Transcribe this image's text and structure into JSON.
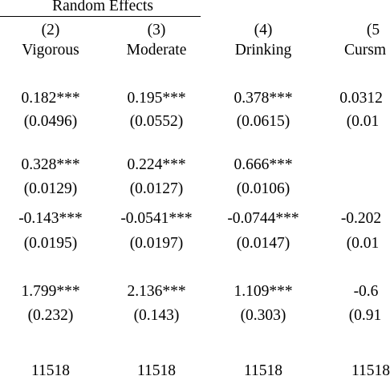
{
  "table": {
    "group_header": "Random Effects",
    "columns": [
      {
        "number": "(2)",
        "name": "Vigorous"
      },
      {
        "number": "(3)",
        "name": "Moderate"
      },
      {
        "number": "(4)",
        "name": "Drinking"
      },
      {
        "number": "(5",
        "name": "Cursm"
      }
    ],
    "rows": [
      {
        "estimates": [
          "0.182***",
          "0.195***",
          "0.378***",
          "0.0312"
        ],
        "std_errors": [
          "(0.0496)",
          "(0.0552)",
          "(0.0615)",
          "(0.01"
        ]
      },
      {
        "estimates": [
          "0.328***",
          "0.224***",
          "0.666***",
          ""
        ],
        "std_errors": [
          "(0.0129)",
          "(0.0127)",
          "(0.0106)",
          ""
        ]
      },
      {
        "estimates": [
          "-0.143***",
          "-0.0541***",
          "-0.0744***",
          "-0.202"
        ],
        "std_errors": [
          "(0.0195)",
          "(0.0197)",
          "(0.0147)",
          "(0.01"
        ]
      },
      {
        "estimates": [
          "1.799***",
          "2.136***",
          "1.109***",
          "-0.6"
        ],
        "std_errors": [
          "(0.232)",
          "(0.143)",
          "(0.303)",
          "(0.91"
        ]
      }
    ],
    "observations": [
      "11518",
      "11518",
      "11518",
      "11518"
    ]
  }
}
